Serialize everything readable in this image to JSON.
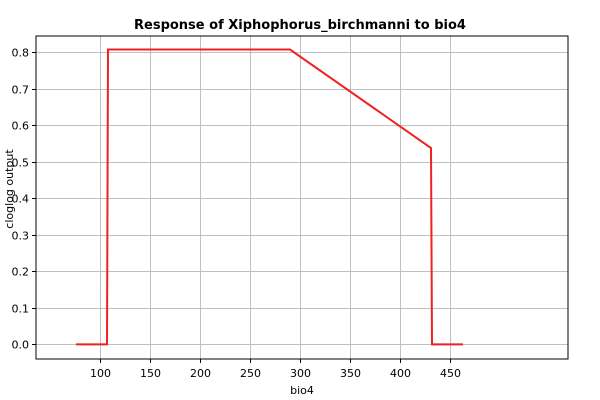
{
  "chart_data": {
    "type": "line",
    "title": "Response of Xiphophorus_birchmanni to bio4",
    "xlabel": "bio4",
    "ylabel": "cloglog output",
    "xlim": [
      36,
      568
    ],
    "ylim": [
      -0.04,
      0.845
    ],
    "x_ticks": [
      100,
      150,
      200,
      250,
      300,
      350,
      400,
      450
    ],
    "y_ticks": [
      0.0,
      0.1,
      0.2,
      0.3,
      0.4,
      0.5,
      0.6,
      0.7,
      0.8
    ],
    "y_tick_labels": [
      "0.0",
      "0.1",
      "0.2",
      "0.3",
      "0.4",
      "0.5",
      "0.6",
      "0.7",
      "0.8"
    ],
    "grid": true,
    "series": [
      {
        "color": "#ee2222",
        "x": [
          76,
          107,
          108,
          290,
          431,
          432,
          463
        ],
        "y": [
          0.0,
          0.0,
          0.808,
          0.808,
          0.538,
          0.0,
          0.0
        ]
      }
    ]
  }
}
